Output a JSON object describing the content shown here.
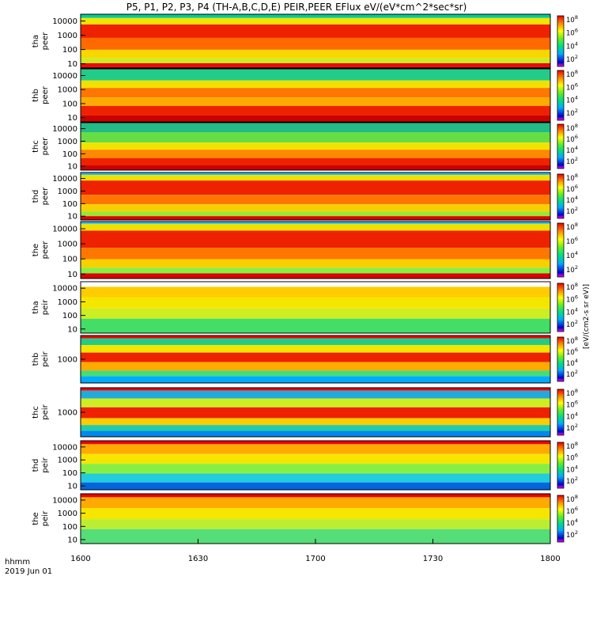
{
  "title": "P5, P1, P2, P3, P4 (TH-A,B,C,D,E) PEIR,PEER EFlux eV/(eV*cm^2*sec*sr)",
  "colorbar_unit": "[eV/(cm2-s sr eV)]",
  "chart_data": {
    "type": "heatmap",
    "date_label": "2019 Jun 01",
    "time_axis_label": "hhmm",
    "x_ticks": [
      "1600",
      "1630",
      "1700",
      "1730",
      "1800"
    ],
    "x_range": [
      "16:00",
      "18:00"
    ],
    "colorbar_ticks": [
      "10^8",
      "10^6",
      "10^4",
      "10^2"
    ],
    "panels": [
      {
        "probe": "tha",
        "species": "peer",
        "yticks": [
          "10000",
          "1000",
          "100",
          "10"
        ],
        "yrange": [
          5,
          30000
        ],
        "scale": "log"
      },
      {
        "probe": "thb",
        "species": "peer",
        "yticks": [
          "10000",
          "1000",
          "100",
          "10"
        ],
        "yrange": [
          5,
          30000
        ],
        "scale": "log"
      },
      {
        "probe": "thc",
        "species": "peer",
        "yticks": [
          "10000",
          "1000",
          "100",
          "10"
        ],
        "yrange": [
          5,
          30000
        ],
        "scale": "log"
      },
      {
        "probe": "thd",
        "species": "peer",
        "yticks": [
          "10000",
          "1000",
          "100",
          "10"
        ],
        "yrange": [
          5,
          30000
        ],
        "scale": "log"
      },
      {
        "probe": "the",
        "species": "peer",
        "yticks": [
          "10000",
          "1000",
          "100",
          "10"
        ],
        "yrange": [
          5,
          30000
        ],
        "scale": "log"
      },
      {
        "probe": "tha",
        "species": "peir",
        "yticks": [
          "10000",
          "1000",
          "100",
          "10"
        ],
        "yrange": [
          5,
          30000
        ],
        "scale": "log"
      },
      {
        "probe": "thb",
        "species": "peir",
        "yticks": [
          "1000"
        ],
        "yrange": [
          5,
          30000
        ],
        "scale": "log"
      },
      {
        "probe": "thc",
        "species": "peir",
        "yticks": [
          "1000"
        ],
        "yrange": [
          5,
          30000
        ],
        "scale": "log"
      },
      {
        "probe": "thd",
        "species": "peir",
        "yticks": [
          "10000",
          "1000",
          "100",
          "10"
        ],
        "yrange": [
          5,
          30000
        ],
        "scale": "log"
      },
      {
        "probe": "the",
        "species": "peir",
        "yticks": [
          "10000",
          "1000",
          "100",
          "10"
        ],
        "yrange": [
          5,
          30000
        ],
        "scale": "log"
      }
    ]
  }
}
